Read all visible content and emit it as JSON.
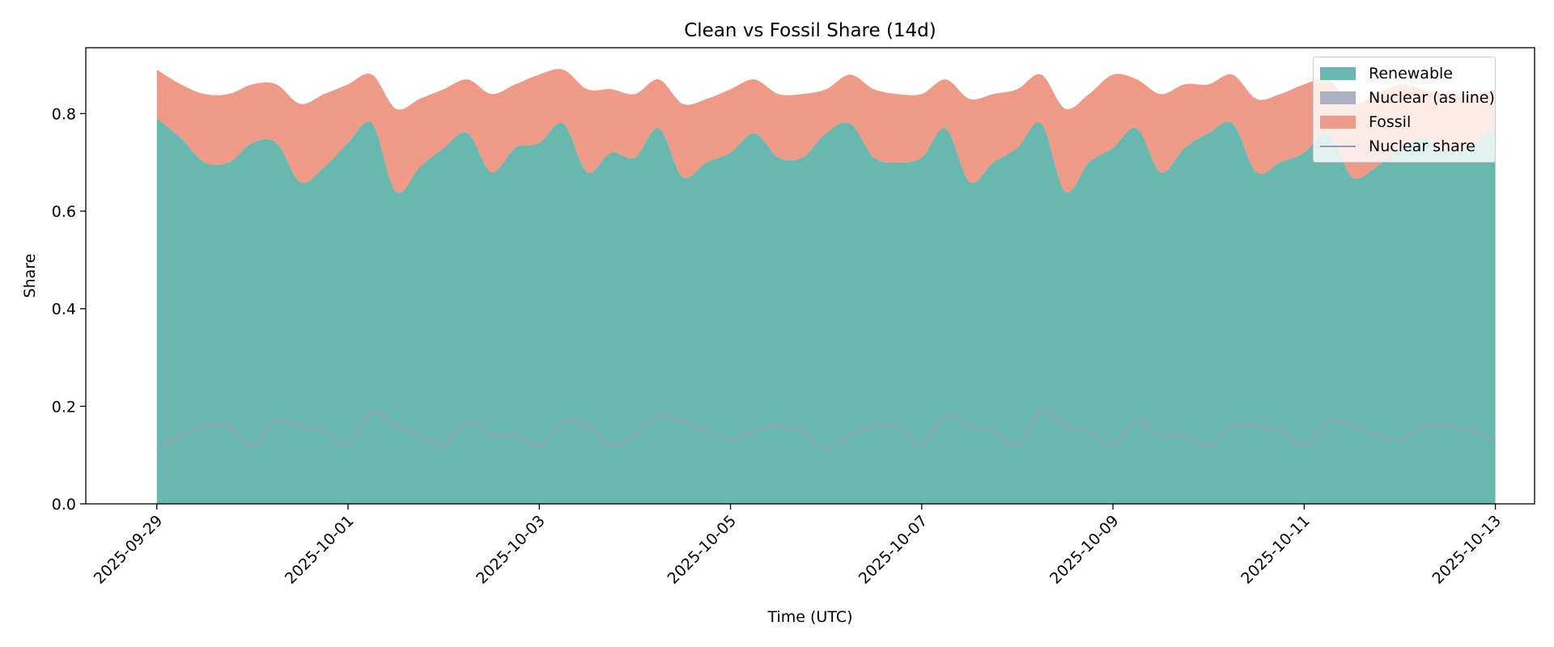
{
  "chart_data": {
    "type": "area",
    "title": "Clean vs Fossil Share (14d)",
    "xlabel": "Time (UTC)",
    "ylabel": "Share",
    "ylim": [
      0,
      0.935
    ],
    "xlim": [
      "2025-09-28T06:10:00Z",
      "2025-10-13T09:50:00Z"
    ],
    "grid": false,
    "legend_position": "top-right",
    "y_ticks": [
      "0.0",
      "0.2",
      "0.4",
      "0.6",
      "0.8"
    ],
    "x_ticks": [
      "2025-09-29",
      "2025-10-01",
      "2025-10-03",
      "2025-10-05",
      "2025-10-07",
      "2025-10-09",
      "2025-10-11",
      "2025-10-13"
    ],
    "colors": {
      "renewable": "#69b8b0",
      "nuclear_fill": "#a9b1c2",
      "fossil": "#ee9a86",
      "nuclear_line": "#9aa0b8"
    },
    "series": [
      {
        "name": "Renewable",
        "kind": "stacked-area-base",
        "x": [
          "2025-09-29T00:00Z",
          "2025-09-29T06:00Z",
          "2025-09-29T12:00Z",
          "2025-09-29T18:00Z",
          "2025-09-30T00:00Z",
          "2025-09-30T06:00Z",
          "2025-09-30T12:00Z",
          "2025-09-30T18:00Z",
          "2025-10-01T00:00Z",
          "2025-10-01T06:00Z",
          "2025-10-01T12:00Z",
          "2025-10-01T18:00Z",
          "2025-10-02T00:00Z",
          "2025-10-02T06:00Z",
          "2025-10-02T12:00Z",
          "2025-10-02T18:00Z",
          "2025-10-03T00:00Z",
          "2025-10-03T06:00Z",
          "2025-10-03T12:00Z",
          "2025-10-03T18:00Z",
          "2025-10-04T00:00Z",
          "2025-10-04T06:00Z",
          "2025-10-04T12:00Z",
          "2025-10-04T18:00Z",
          "2025-10-05T00:00Z",
          "2025-10-05T06:00Z",
          "2025-10-05T12:00Z",
          "2025-10-05T18:00Z",
          "2025-10-06T00:00Z",
          "2025-10-06T06:00Z",
          "2025-10-06T12:00Z",
          "2025-10-06T18:00Z",
          "2025-10-07T00:00Z",
          "2025-10-07T06:00Z",
          "2025-10-07T12:00Z",
          "2025-10-07T18:00Z",
          "2025-10-08T00:00Z",
          "2025-10-08T06:00Z",
          "2025-10-08T12:00Z",
          "2025-10-08T18:00Z",
          "2025-10-09T00:00Z",
          "2025-10-09T06:00Z",
          "2025-10-09T12:00Z",
          "2025-10-09T18:00Z",
          "2025-10-10T00:00Z",
          "2025-10-10T06:00Z",
          "2025-10-10T12:00Z",
          "2025-10-10T18:00Z",
          "2025-10-11T00:00Z",
          "2025-10-11T06:00Z",
          "2025-10-11T12:00Z",
          "2025-10-11T18:00Z",
          "2025-10-12T00:00Z",
          "2025-10-12T06:00Z",
          "2025-10-12T12:00Z",
          "2025-10-12T18:00Z",
          "2025-10-13T00:00Z"
        ],
        "values": [
          0.79,
          0.75,
          0.7,
          0.7,
          0.74,
          0.74,
          0.66,
          0.69,
          0.74,
          0.78,
          0.64,
          0.69,
          0.73,
          0.76,
          0.68,
          0.73,
          0.74,
          0.78,
          0.68,
          0.72,
          0.71,
          0.77,
          0.67,
          0.7,
          0.72,
          0.76,
          0.71,
          0.71,
          0.76,
          0.78,
          0.71,
          0.7,
          0.71,
          0.77,
          0.66,
          0.7,
          0.73,
          0.78,
          0.64,
          0.7,
          0.73,
          0.77,
          0.68,
          0.73,
          0.76,
          0.78,
          0.68,
          0.7,
          0.72,
          0.76,
          0.67,
          0.69,
          0.73,
          0.75,
          0.72,
          0.74,
          0.77
        ]
      },
      {
        "name": "Nuclear (as line)",
        "kind": "stacked-area-zero"
      },
      {
        "name": "Fossil",
        "kind": "stacked-area-top",
        "x": [
          "2025-09-29T00:00Z",
          "2025-09-29T06:00Z",
          "2025-09-29T12:00Z",
          "2025-09-29T18:00Z",
          "2025-09-30T00:00Z",
          "2025-09-30T06:00Z",
          "2025-09-30T12:00Z",
          "2025-09-30T18:00Z",
          "2025-10-01T00:00Z",
          "2025-10-01T06:00Z",
          "2025-10-01T12:00Z",
          "2025-10-01T18:00Z",
          "2025-10-02T00:00Z",
          "2025-10-02T06:00Z",
          "2025-10-02T12:00Z",
          "2025-10-02T18:00Z",
          "2025-10-03T00:00Z",
          "2025-10-03T06:00Z",
          "2025-10-03T12:00Z",
          "2025-10-03T18:00Z",
          "2025-10-04T00:00Z",
          "2025-10-04T06:00Z",
          "2025-10-04T12:00Z",
          "2025-10-04T18:00Z",
          "2025-10-05T00:00Z",
          "2025-10-05T06:00Z",
          "2025-10-05T12:00Z",
          "2025-10-05T18:00Z",
          "2025-10-06T00:00Z",
          "2025-10-06T06:00Z",
          "2025-10-06T12:00Z",
          "2025-10-06T18:00Z",
          "2025-10-07T00:00Z",
          "2025-10-07T06:00Z",
          "2025-10-07T12:00Z",
          "2025-10-07T18:00Z",
          "2025-10-08T00:00Z",
          "2025-10-08T06:00Z",
          "2025-10-08T12:00Z",
          "2025-10-08T18:00Z",
          "2025-10-09T00:00Z",
          "2025-10-09T06:00Z",
          "2025-10-09T12:00Z",
          "2025-10-09T18:00Z",
          "2025-10-10T00:00Z",
          "2025-10-10T06:00Z",
          "2025-10-10T12:00Z",
          "2025-10-10T18:00Z",
          "2025-10-11T00:00Z",
          "2025-10-11T06:00Z",
          "2025-10-11T12:00Z",
          "2025-10-11T18:00Z",
          "2025-10-12T00:00Z",
          "2025-10-12T06:00Z",
          "2025-10-12T12:00Z",
          "2025-10-12T18:00Z",
          "2025-10-13T00:00Z"
        ],
        "values": [
          0.1,
          0.11,
          0.14,
          0.14,
          0.12,
          0.12,
          0.16,
          0.15,
          0.12,
          0.1,
          0.17,
          0.14,
          0.12,
          0.11,
          0.16,
          0.13,
          0.14,
          0.11,
          0.17,
          0.13,
          0.13,
          0.1,
          0.15,
          0.13,
          0.13,
          0.11,
          0.13,
          0.13,
          0.09,
          0.1,
          0.14,
          0.14,
          0.13,
          0.1,
          0.17,
          0.14,
          0.12,
          0.1,
          0.17,
          0.14,
          0.15,
          0.1,
          0.16,
          0.13,
          0.1,
          0.1,
          0.15,
          0.14,
          0.14,
          0.11,
          0.15,
          0.15,
          0.13,
          0.1,
          0.12,
          0.1,
          0.08
        ]
      },
      {
        "name": "Nuclear share",
        "kind": "line",
        "x": [
          "2025-09-29T00:00Z",
          "2025-09-29T06:00Z",
          "2025-09-29T12:00Z",
          "2025-09-29T18:00Z",
          "2025-09-30T00:00Z",
          "2025-09-30T06:00Z",
          "2025-09-30T12:00Z",
          "2025-09-30T18:00Z",
          "2025-10-01T00:00Z",
          "2025-10-01T06:00Z",
          "2025-10-01T12:00Z",
          "2025-10-01T18:00Z",
          "2025-10-02T00:00Z",
          "2025-10-02T06:00Z",
          "2025-10-02T12:00Z",
          "2025-10-02T18:00Z",
          "2025-10-03T00:00Z",
          "2025-10-03T06:00Z",
          "2025-10-03T12:00Z",
          "2025-10-03T18:00Z",
          "2025-10-04T00:00Z",
          "2025-10-04T06:00Z",
          "2025-10-04T12:00Z",
          "2025-10-04T18:00Z",
          "2025-10-05T00:00Z",
          "2025-10-05T06:00Z",
          "2025-10-05T12:00Z",
          "2025-10-05T18:00Z",
          "2025-10-06T00:00Z",
          "2025-10-06T06:00Z",
          "2025-10-06T12:00Z",
          "2025-10-06T18:00Z",
          "2025-10-07T00:00Z",
          "2025-10-07T06:00Z",
          "2025-10-07T12:00Z",
          "2025-10-07T18:00Z",
          "2025-10-08T00:00Z",
          "2025-10-08T06:00Z",
          "2025-10-08T12:00Z",
          "2025-10-08T18:00Z",
          "2025-10-09T00:00Z",
          "2025-10-09T06:00Z",
          "2025-10-09T12:00Z",
          "2025-10-09T18:00Z",
          "2025-10-10T00:00Z",
          "2025-10-10T06:00Z",
          "2025-10-10T12:00Z",
          "2025-10-10T18:00Z",
          "2025-10-11T00:00Z",
          "2025-10-11T06:00Z",
          "2025-10-11T12:00Z",
          "2025-10-11T18:00Z",
          "2025-10-12T00:00Z",
          "2025-10-12T06:00Z",
          "2025-10-12T12:00Z",
          "2025-10-12T18:00Z",
          "2025-10-13T00:00Z"
        ],
        "values": [
          0.11,
          0.14,
          0.16,
          0.16,
          0.12,
          0.17,
          0.16,
          0.15,
          0.12,
          0.19,
          0.16,
          0.14,
          0.12,
          0.17,
          0.14,
          0.14,
          0.12,
          0.17,
          0.16,
          0.12,
          0.14,
          0.18,
          0.17,
          0.15,
          0.13,
          0.15,
          0.16,
          0.15,
          0.11,
          0.14,
          0.16,
          0.16,
          0.12,
          0.18,
          0.16,
          0.15,
          0.12,
          0.19,
          0.16,
          0.15,
          0.12,
          0.17,
          0.14,
          0.14,
          0.12,
          0.16,
          0.16,
          0.15,
          0.12,
          0.17,
          0.16,
          0.14,
          0.13,
          0.16,
          0.16,
          0.15,
          0.13
        ]
      }
    ]
  }
}
